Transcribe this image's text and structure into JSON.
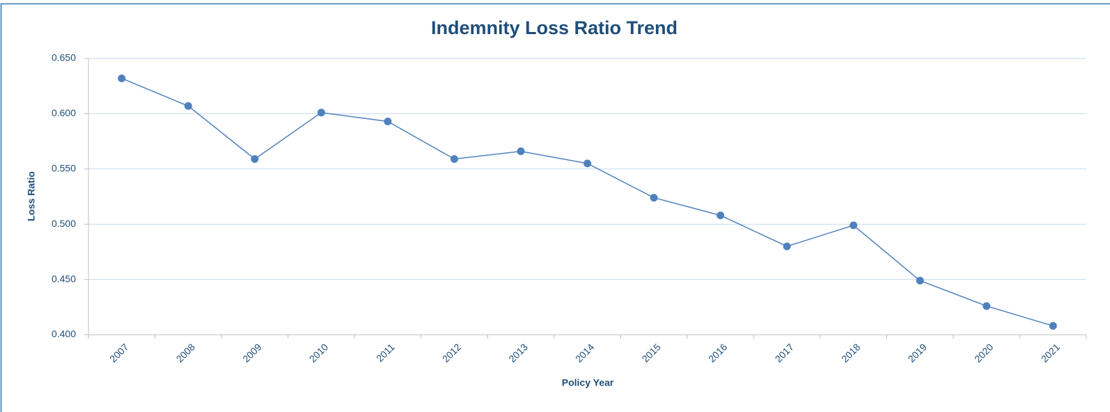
{
  "chart_data": {
    "type": "line",
    "title": "Indemnity Loss Ratio Trend",
    "x_label": "Policy Year",
    "y_label": "Loss Ratio",
    "categories": [
      "2007",
      "2008",
      "2009",
      "2010",
      "2011",
      "2012",
      "2013",
      "2014",
      "2015",
      "2016",
      "2017",
      "2018",
      "2019",
      "2020",
      "2021"
    ],
    "series": [
      {
        "name": "Loss Ratio",
        "color": "#4f81bd",
        "values": [
          0.632,
          0.607,
          0.559,
          0.601,
          0.593,
          0.559,
          0.566,
          0.555,
          0.524,
          0.508,
          0.48,
          0.499,
          0.449,
          0.426,
          0.408
        ]
      }
    ],
    "ylim": [
      0.4,
      0.65
    ],
    "yticks": [
      {
        "value": 0.4,
        "label": "0.400"
      },
      {
        "value": 0.45,
        "label": "0.450"
      },
      {
        "value": 0.5,
        "label": "0.500"
      },
      {
        "value": 0.55,
        "label": "0.550"
      },
      {
        "value": 0.6,
        "label": "0.600"
      },
      {
        "value": 0.65,
        "label": "0.650"
      }
    ],
    "grid": true
  }
}
